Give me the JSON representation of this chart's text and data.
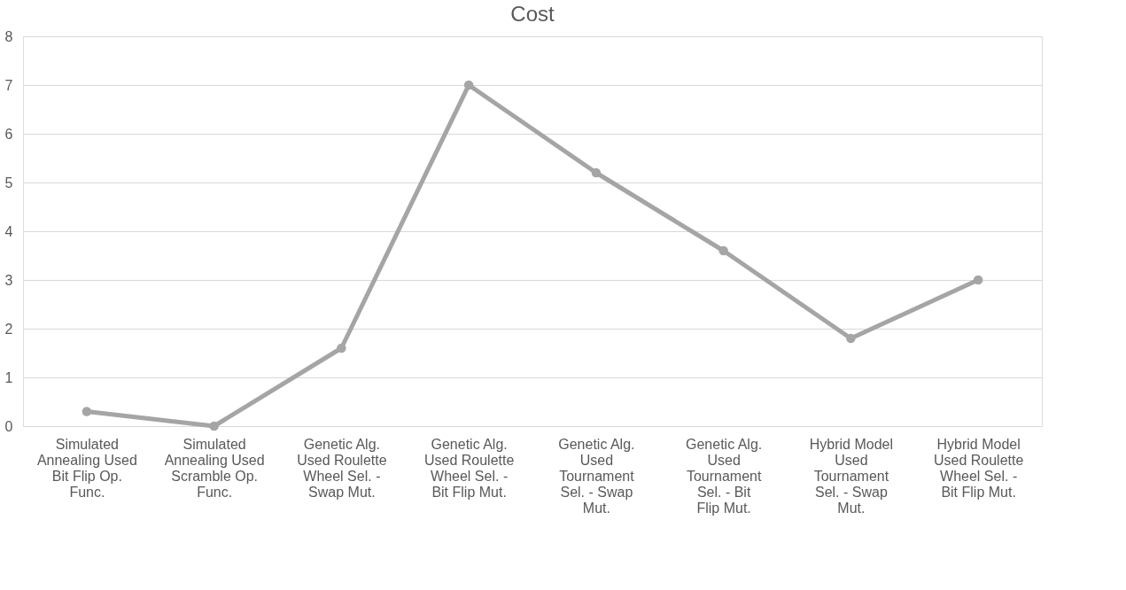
{
  "chart_data": {
    "type": "line",
    "title": "Cost",
    "categories": [
      "Simulated Annealing Used Bit Flip Op. Func.",
      "Simulated Annealing Used Scramble Op. Func.",
      "Genetic Alg. Used Roulette Wheel Sel. - Swap Mut.",
      "Genetic Alg. Used Roulette Wheel Sel. - Bit Flip Mut.",
      "Genetic Alg. Used Tournament Sel. - Swap Mut.",
      "Genetic Alg. Used Tournament Sel. - Bit Flip Mut.",
      "Hybrid Model Used Tournament Sel. - Swap Mut.",
      "Hybrid Model Used Roulette Wheel Sel. - Bit Flip Mut."
    ],
    "series": [
      {
        "color": "#a5a5a5",
        "values": [
          0.3,
          0,
          1.6,
          7,
          5.2,
          3.6,
          1.8,
          3
        ]
      }
    ],
    "ylim": [
      0,
      8
    ],
    "yticks": [
      0,
      1,
      2,
      3,
      4,
      5,
      6,
      7,
      8
    ],
    "grid": "y",
    "legend": false,
    "marker": "circle",
    "line_style": "solid"
  }
}
